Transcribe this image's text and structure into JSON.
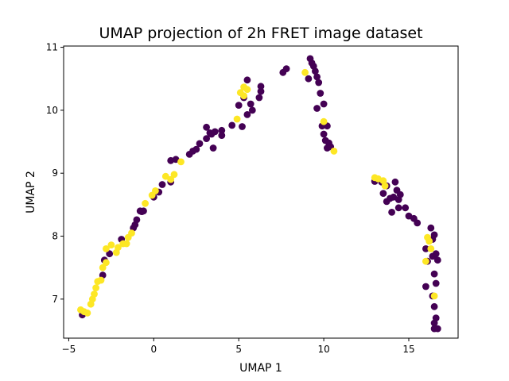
{
  "chart_data": {
    "type": "scatter",
    "title": "UMAP projection of 2h FRET image dataset",
    "xlabel": "UMAP 1",
    "ylabel": "UMAP 2",
    "xlim": [
      -5.3,
      17.9
    ],
    "ylim": [
      6.38,
      11.02
    ],
    "xticks": [
      -5,
      0,
      5,
      10,
      15
    ],
    "yticks": [
      7,
      8,
      9,
      10,
      11
    ],
    "grid": false,
    "legend": "none",
    "colors": {
      "class_a": "#440154",
      "class_b": "#fde725"
    },
    "series": [
      {
        "color_key": "class_a",
        "points": [
          [
            -4.2,
            6.75
          ],
          [
            -3.0,
            7.38
          ],
          [
            -2.9,
            7.62
          ],
          [
            -2.6,
            7.72
          ],
          [
            -1.9,
            7.95
          ],
          [
            -1.2,
            8.13
          ],
          [
            -1.1,
            8.18
          ],
          [
            -1.0,
            8.26
          ],
          [
            -0.8,
            8.4
          ],
          [
            -0.6,
            8.4
          ],
          [
            -0.7,
            8.39
          ],
          [
            0.0,
            8.62
          ],
          [
            0.3,
            8.7
          ],
          [
            0.5,
            8.82
          ],
          [
            1.0,
            8.86
          ],
          [
            1.0,
            9.2
          ],
          [
            1.3,
            9.22
          ],
          [
            2.1,
            9.3
          ],
          [
            2.3,
            9.35
          ],
          [
            2.5,
            9.38
          ],
          [
            2.7,
            9.47
          ],
          [
            3.1,
            9.55
          ],
          [
            3.1,
            9.73
          ],
          [
            3.3,
            9.64
          ],
          [
            3.4,
            9.62
          ],
          [
            3.6,
            9.66
          ],
          [
            3.5,
            9.4
          ],
          [
            4.0,
            9.68
          ],
          [
            4.0,
            9.6
          ],
          [
            4.6,
            9.76
          ],
          [
            5.2,
            9.74
          ],
          [
            5.0,
            10.08
          ],
          [
            5.3,
            10.2
          ],
          [
            5.5,
            10.48
          ],
          [
            5.5,
            9.93
          ],
          [
            5.7,
            10.1
          ],
          [
            5.8,
            10.0
          ],
          [
            6.2,
            10.2
          ],
          [
            6.3,
            10.3
          ],
          [
            6.3,
            10.38
          ],
          [
            7.6,
            10.6
          ],
          [
            7.8,
            10.66
          ],
          [
            9.1,
            10.5
          ],
          [
            9.2,
            10.82
          ],
          [
            9.3,
            10.75
          ],
          [
            9.4,
            10.7
          ],
          [
            9.5,
            10.62
          ],
          [
            9.6,
            10.53
          ],
          [
            9.7,
            10.44
          ],
          [
            9.8,
            10.27
          ],
          [
            9.6,
            10.03
          ],
          [
            10.0,
            10.1
          ],
          [
            9.9,
            9.75
          ],
          [
            10.0,
            9.62
          ],
          [
            10.1,
            9.52
          ],
          [
            10.2,
            9.75
          ],
          [
            10.3,
            9.48
          ],
          [
            10.2,
            9.4
          ],
          [
            10.4,
            9.42
          ],
          [
            13.0,
            8.87
          ],
          [
            13.4,
            8.86
          ],
          [
            13.7,
            8.8
          ],
          [
            13.5,
            8.68
          ],
          [
            13.7,
            8.55
          ],
          [
            13.9,
            8.6
          ],
          [
            14.0,
            8.38
          ],
          [
            14.1,
            8.62
          ],
          [
            14.2,
            8.86
          ],
          [
            14.3,
            8.73
          ],
          [
            14.4,
            8.58
          ],
          [
            14.5,
            8.66
          ],
          [
            14.4,
            8.45
          ],
          [
            14.8,
            8.45
          ],
          [
            15.0,
            8.32
          ],
          [
            15.3,
            8.28
          ],
          [
            15.5,
            8.21
          ],
          [
            16.0,
            7.8
          ],
          [
            16.1,
            7.6
          ],
          [
            16.3,
            8.13
          ],
          [
            16.4,
            7.95
          ],
          [
            16.5,
            8.02
          ],
          [
            16.4,
            7.68
          ],
          [
            16.6,
            7.72
          ],
          [
            16.7,
            7.62
          ],
          [
            16.5,
            7.4
          ],
          [
            16.6,
            7.25
          ],
          [
            16.0,
            7.2
          ],
          [
            16.4,
            7.05
          ],
          [
            16.5,
            6.88
          ],
          [
            16.6,
            6.7
          ],
          [
            16.5,
            6.62
          ],
          [
            16.5,
            6.53
          ],
          [
            16.7,
            6.53
          ]
        ]
      },
      {
        "color_key": "class_b",
        "points": [
          [
            -4.3,
            6.83
          ],
          [
            -4.1,
            6.8
          ],
          [
            -3.9,
            6.78
          ],
          [
            -3.7,
            6.92
          ],
          [
            -3.6,
            7.0
          ],
          [
            -3.5,
            7.08
          ],
          [
            -3.4,
            7.18
          ],
          [
            -3.3,
            7.28
          ],
          [
            -3.1,
            7.3
          ],
          [
            -3.0,
            7.5
          ],
          [
            -2.8,
            7.58
          ],
          [
            -2.8,
            7.8
          ],
          [
            -2.5,
            7.86
          ],
          [
            -2.2,
            7.74
          ],
          [
            -2.1,
            7.82
          ],
          [
            -1.8,
            7.88
          ],
          [
            -1.6,
            7.88
          ],
          [
            -1.5,
            7.98
          ],
          [
            -1.3,
            8.05
          ],
          [
            -0.5,
            8.52
          ],
          [
            -0.1,
            8.65
          ],
          [
            0.1,
            8.72
          ],
          [
            0.7,
            8.95
          ],
          [
            1.0,
            8.9
          ],
          [
            1.2,
            8.98
          ],
          [
            1.6,
            9.18
          ],
          [
            4.9,
            9.86
          ],
          [
            5.1,
            10.28
          ],
          [
            5.3,
            10.23
          ],
          [
            5.5,
            10.33
          ],
          [
            5.3,
            10.37
          ],
          [
            8.9,
            10.6
          ],
          [
            10.0,
            9.82
          ],
          [
            10.6,
            9.35
          ],
          [
            13.0,
            8.93
          ],
          [
            13.2,
            8.91
          ],
          [
            13.5,
            8.88
          ],
          [
            13.6,
            8.8
          ],
          [
            16.0,
            7.6
          ],
          [
            16.1,
            7.98
          ],
          [
            16.2,
            7.92
          ],
          [
            16.3,
            7.8
          ],
          [
            16.5,
            7.05
          ]
        ]
      }
    ]
  }
}
